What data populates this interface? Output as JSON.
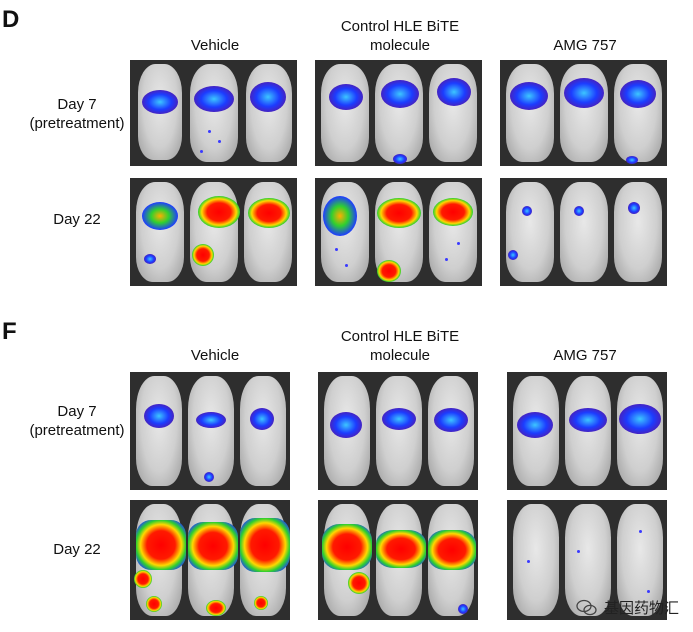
{
  "panels": [
    {
      "letter": "D",
      "columns": [
        "Vehicle",
        "Control HLE BiTE\nmolecule",
        "AMG 757"
      ],
      "rows": [
        "Day 7\n(pretreatment)",
        "Day 22"
      ]
    },
    {
      "letter": "F",
      "columns": [
        "Vehicle",
        "Control HLE BiTE\nmolecule",
        "AMG 757"
      ],
      "rows": [
        "Day 7\n(pretreatment)",
        "Day 22"
      ]
    }
  ],
  "watermark": {
    "text": "基因药物汇",
    "icon": "wechat-icon"
  },
  "colors": {
    "panel_bg": "#2e2e2e",
    "signal_low": "#1c3cff",
    "signal_high": "#ff0000"
  }
}
